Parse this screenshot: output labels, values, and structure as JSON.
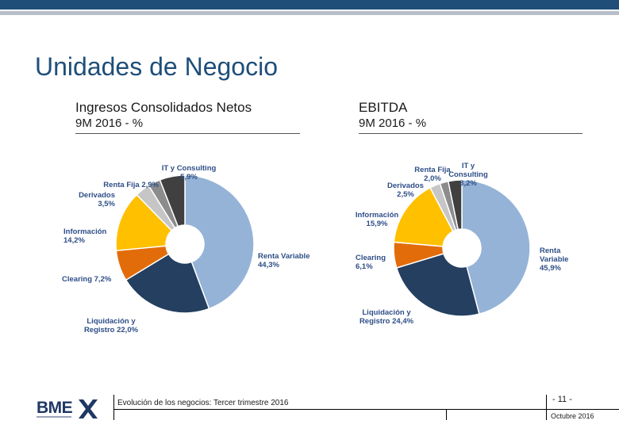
{
  "slide": {
    "title": "Unidades de Negocio",
    "footer_text": "Evolución de los negocios: Tercer trimestre 2016",
    "page_number": "- 11 -",
    "date": "Octubre 2016",
    "logo_text": "BME"
  },
  "colors": {
    "navy": "#1f4e79",
    "renta_variable": "#95b3d7",
    "liquidacion": "#243f60",
    "clearing": "#e36c0a",
    "informacion": "#ffc000",
    "derivados": "#c6c6c6",
    "renta_fija": "#8c8c8c",
    "it": "#404040"
  },
  "chart_data": [
    {
      "type": "pie",
      "title": "Ingresos Consolidados Netos",
      "subtitle": "9M 2016 - %",
      "donut": true,
      "slices": [
        {
          "label_lines": [
            "Renta Variable",
            "44,3%"
          ],
          "value": 44.3
        },
        {
          "label_lines": [
            "Liquidación y",
            "Registro 22,0%"
          ],
          "value": 22.0
        },
        {
          "label_lines": [
            "Clearing 7,2%"
          ],
          "value": 7.2
        },
        {
          "label_lines": [
            "Información",
            "14,2%"
          ],
          "value": 14.2
        },
        {
          "label_lines": [
            "Derivados",
            "3,5%"
          ],
          "value": 3.5
        },
        {
          "label_lines": [
            "Renta Fija 2,9%"
          ],
          "value": 2.9
        },
        {
          "label_lines": [
            "IT y Consulting",
            "5,9%"
          ],
          "value": 5.9
        }
      ]
    },
    {
      "type": "pie",
      "title": "EBITDA",
      "subtitle": "9M 2016 - %",
      "donut": true,
      "slices": [
        {
          "label_lines": [
            "Renta",
            "Variable",
            "45,9%"
          ],
          "value": 45.9
        },
        {
          "label_lines": [
            "Liquidación y",
            "Registro 24,4%"
          ],
          "value": 24.4
        },
        {
          "label_lines": [
            "Clearing",
            "6,1%"
          ],
          "value": 6.1
        },
        {
          "label_lines": [
            "Información",
            "15,9%"
          ],
          "value": 15.9
        },
        {
          "label_lines": [
            "Derivados",
            "2,5%"
          ],
          "value": 2.5
        },
        {
          "label_lines": [
            "Renta Fija",
            "2,0%"
          ],
          "value": 2.0
        },
        {
          "label_lines": [
            "IT y",
            "Consulting",
            "3,2%"
          ],
          "value": 3.2
        }
      ]
    }
  ]
}
